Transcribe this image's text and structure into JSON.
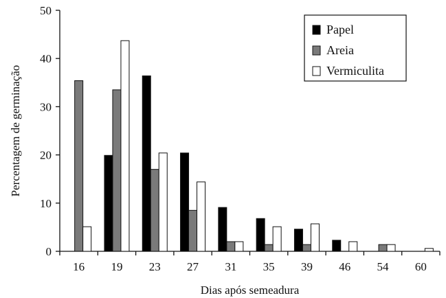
{
  "chart_data": {
    "type": "bar",
    "xlabel": "Dias após semeadura",
    "ylabel": "Percentagem de germinação",
    "categories": [
      "16",
      "19",
      "23",
      "27",
      "31",
      "35",
      "39",
      "46",
      "54",
      "60"
    ],
    "ylim": [
      0,
      50
    ],
    "yticks": [
      "0",
      "10",
      "20",
      "30",
      "40",
      "50"
    ],
    "grid": false,
    "legend_position": "top-right",
    "series": [
      {
        "name": "Papel",
        "color": "#000000",
        "values": [
          0,
          19.9,
          36.4,
          20.4,
          9.1,
          6.8,
          4.6,
          2.3,
          0,
          0
        ]
      },
      {
        "name": "Areia",
        "color": "#7a7a7a",
        "values": [
          35.4,
          33.5,
          17.0,
          8.5,
          2.0,
          1.4,
          1.4,
          0,
          1.4,
          0
        ]
      },
      {
        "name": "Vermiculita",
        "color": "#ffffff",
        "values": [
          5.1,
          43.7,
          20.4,
          14.4,
          2.0,
          5.1,
          5.7,
          2.0,
          1.4,
          0.6
        ]
      }
    ]
  }
}
